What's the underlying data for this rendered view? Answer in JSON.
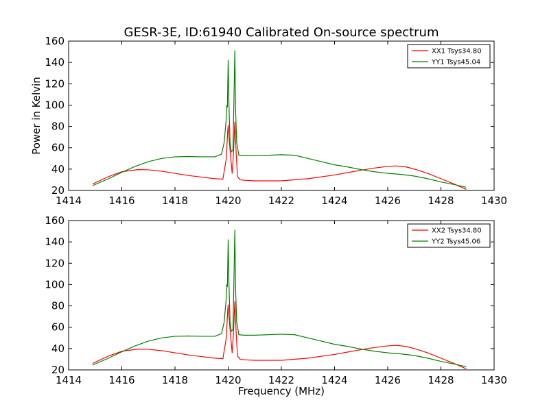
{
  "chart_data": [
    {
      "type": "line",
      "title": "GESR-3E, ID:61940 Calibrated On-source spectrum",
      "xlabel": "",
      "ylabel": "Power in Kelvin",
      "xlim": [
        1414,
        1430
      ],
      "ylim": [
        20,
        160
      ],
      "xticks": [
        "1414",
        "1416",
        "1418",
        "1420",
        "1422",
        "1424",
        "1426",
        "1428",
        "1430"
      ],
      "yticks": [
        "20",
        "40",
        "60",
        "80",
        "100",
        "120",
        "140",
        "160"
      ],
      "legend_position": "top-right",
      "series": [
        {
          "name": "XX1 Tsys34.80",
          "color": "#ff0000",
          "x": [
            1414.9,
            1415.5,
            1416.0,
            1416.6,
            1417.0,
            1417.5,
            1418.0,
            1418.5,
            1419.0,
            1419.5,
            1419.8,
            1419.93,
            1419.98,
            1420.0,
            1420.03,
            1420.08,
            1420.15,
            1420.2,
            1420.25,
            1420.3,
            1420.35,
            1420.45,
            1420.6,
            1421.0,
            1422.0,
            1423.0,
            1424.0,
            1425.0,
            1425.5,
            1426.0,
            1426.3,
            1426.7,
            1427.0,
            1427.5,
            1428.0,
            1428.5,
            1428.95
          ],
          "y": [
            26,
            33,
            37.5,
            39.5,
            39.3,
            38,
            36,
            34,
            32.5,
            31,
            30.5,
            50,
            75,
            81,
            70,
            55,
            36,
            55,
            84,
            55,
            33,
            30,
            29.5,
            29,
            29,
            31,
            34.5,
            39,
            41,
            42.5,
            43,
            42,
            40,
            36,
            31,
            26,
            21
          ]
        },
        {
          "name": "YY1 Tsys45.04",
          "color": "#008000",
          "x": [
            1414.9,
            1415.5,
            1416.0,
            1416.5,
            1417.0,
            1417.5,
            1418.0,
            1418.5,
            1419.0,
            1419.5,
            1419.75,
            1419.85,
            1419.92,
            1419.95,
            1419.97,
            1420.0,
            1420.03,
            1420.07,
            1420.12,
            1420.18,
            1420.22,
            1420.25,
            1420.28,
            1420.32,
            1420.4,
            1420.6,
            1421.0,
            1421.5,
            1422.0,
            1422.5,
            1423.0,
            1423.5,
            1424.0,
            1424.5,
            1425.0,
            1425.5,
            1426.0,
            1426.5,
            1427.0,
            1427.5,
            1428.0,
            1428.5,
            1428.95
          ],
          "y": [
            24.5,
            31,
            37,
            42.5,
            47,
            50,
            51.5,
            51.8,
            51.5,
            51.5,
            54,
            65,
            85,
            100,
            98,
            142,
            100,
            65,
            56,
            58,
            110,
            151,
            95,
            65,
            53,
            52.5,
            52.5,
            53,
            53.5,
            53,
            50,
            47,
            44,
            42,
            39.5,
            37.5,
            36,
            35,
            33.5,
            31,
            28,
            25.5,
            23
          ]
        }
      ]
    },
    {
      "type": "line",
      "title": "",
      "xlabel": "Frequency (MHz)",
      "ylabel": "",
      "xlim": [
        1414,
        1430
      ],
      "ylim": [
        20,
        160
      ],
      "xticks": [
        "1414",
        "1416",
        "1418",
        "1420",
        "1422",
        "1424",
        "1426",
        "1428",
        "1430"
      ],
      "yticks": [
        "20",
        "40",
        "60",
        "80",
        "100",
        "120",
        "140",
        "160"
      ],
      "legend_position": "top-right",
      "series": [
        {
          "name": "XX2 Tsys34.80",
          "color": "#ff0000",
          "x": [
            1414.9,
            1415.5,
            1416.0,
            1416.6,
            1417.0,
            1417.5,
            1418.0,
            1418.5,
            1419.0,
            1419.5,
            1419.8,
            1419.93,
            1419.98,
            1420.0,
            1420.03,
            1420.08,
            1420.15,
            1420.2,
            1420.25,
            1420.3,
            1420.35,
            1420.45,
            1420.6,
            1421.0,
            1422.0,
            1423.0,
            1424.0,
            1425.0,
            1425.5,
            1426.0,
            1426.3,
            1426.7,
            1427.0,
            1427.5,
            1428.0,
            1428.5,
            1428.95
          ],
          "y": [
            26,
            33,
            37.5,
            39.5,
            39.3,
            38,
            36,
            34,
            32.5,
            31,
            30.5,
            50,
            75,
            81,
            70,
            55,
            36,
            55,
            84,
            55,
            33,
            30,
            29.5,
            29,
            29,
            31,
            34.5,
            39,
            41,
            42.5,
            43,
            42,
            40,
            36,
            31,
            26,
            21
          ]
        },
        {
          "name": "YY2 Tsys45.06",
          "color": "#008000",
          "x": [
            1414.9,
            1415.5,
            1416.0,
            1416.5,
            1417.0,
            1417.5,
            1418.0,
            1418.5,
            1419.0,
            1419.5,
            1419.75,
            1419.85,
            1419.92,
            1419.95,
            1419.97,
            1420.0,
            1420.03,
            1420.07,
            1420.12,
            1420.18,
            1420.22,
            1420.25,
            1420.28,
            1420.32,
            1420.4,
            1420.6,
            1421.0,
            1421.5,
            1422.0,
            1422.5,
            1423.0,
            1423.5,
            1424.0,
            1424.5,
            1425.0,
            1425.5,
            1426.0,
            1426.5,
            1427.0,
            1427.5,
            1428.0,
            1428.5,
            1428.95
          ],
          "y": [
            24.5,
            31,
            37,
            42.5,
            47,
            50,
            51.5,
            51.8,
            51.5,
            51.5,
            54,
            65,
            85,
            100,
            98,
            142,
            100,
            65,
            56,
            58,
            110,
            151,
            95,
            65,
            53,
            52.5,
            52.5,
            53,
            53.5,
            53,
            50,
            47,
            44,
            42,
            39.5,
            37.5,
            36,
            35,
            33.5,
            31,
            28,
            25.5,
            23
          ]
        }
      ]
    }
  ]
}
